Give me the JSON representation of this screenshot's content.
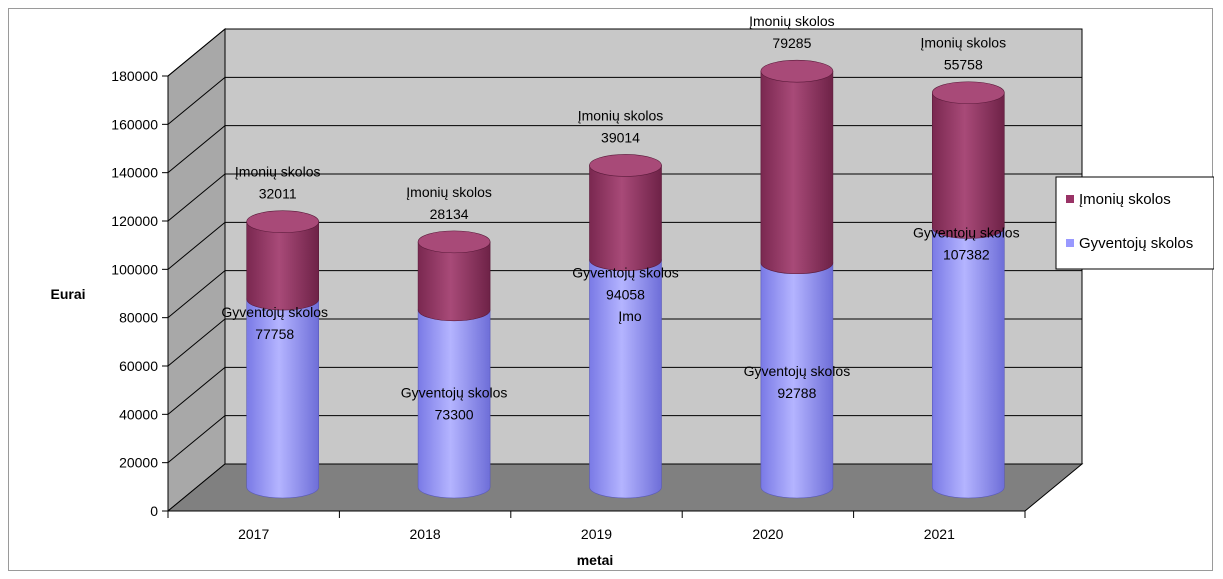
{
  "chart_data": {
    "type": "bar",
    "stacked": true,
    "style": "3d-cylinder",
    "categories": [
      "2017",
      "2018",
      "2019",
      "2020",
      "2021"
    ],
    "series": [
      {
        "name": "Gyventojų skolos",
        "label": "Gyventojų skolos",
        "values": [
          77758,
          73300,
          94058,
          92788,
          107382
        ],
        "color": "#9999ff"
      },
      {
        "name": "Įmonių skolos",
        "label": "Įmonių skolos",
        "values": [
          32011,
          28134,
          39014,
          79285,
          55758
        ],
        "color": "#993366"
      }
    ],
    "xlabel": "metai",
    "ylabel": "Eurai",
    "ylim": [
      0,
      180000
    ],
    "yticks": [
      "0",
      "20000",
      "40000",
      "60000",
      "80000",
      "100000",
      "120000",
      "140000",
      "160000",
      "180000"
    ],
    "grid": true,
    "legend_position": "right",
    "extra_annotation": "Įmo",
    "colors": {
      "wall": "#c8c8c8",
      "floor": "#808080",
      "gridline": "#000000"
    }
  }
}
